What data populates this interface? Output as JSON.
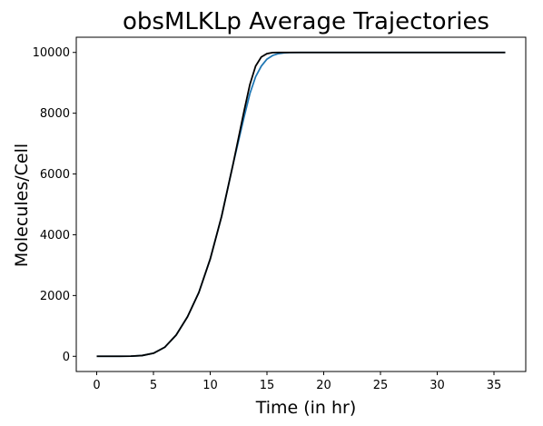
{
  "chart_data": {
    "type": "line",
    "title": "obsMLKLp Average Trajectories",
    "xlabel": "Time (in hr)",
    "ylabel": "Molecules/Cell",
    "xlim": [
      -1.8,
      37.8
    ],
    "ylim": [
      -500,
      10500
    ],
    "xticks": [
      0,
      5,
      10,
      15,
      20,
      25,
      30,
      35
    ],
    "yticks": [
      0,
      2000,
      4000,
      6000,
      8000,
      10000
    ],
    "grid": false,
    "legend": "none",
    "series": [
      {
        "color": "#1f77b4",
        "x": [
          0,
          2,
          3,
          4,
          5,
          6,
          7,
          8,
          9,
          10,
          11,
          12,
          13,
          13.5,
          14,
          14.5,
          15,
          15.5,
          16,
          16.5,
          17,
          18,
          20,
          25,
          30,
          36
        ],
        "y": [
          0,
          0,
          5,
          25,
          100,
          300,
          700,
          1300,
          2100,
          3200,
          4600,
          6300,
          7900,
          8650,
          9200,
          9550,
          9780,
          9900,
          9960,
          9985,
          9995,
          10000,
          10000,
          10000,
          10000,
          10000
        ]
      },
      {
        "color": "#000000",
        "x": [
          0,
          2,
          3,
          4,
          5,
          6,
          7,
          8,
          9,
          10,
          11,
          12,
          13,
          13.5,
          14,
          14.5,
          15,
          15.5,
          16,
          16.5,
          17,
          18,
          20,
          25,
          30,
          36
        ],
        "y": [
          0,
          0,
          5,
          25,
          100,
          300,
          700,
          1300,
          2100,
          3200,
          4600,
          6300,
          8100,
          8950,
          9550,
          9850,
          9960,
          9995,
          10000,
          10000,
          10000,
          10000,
          10000,
          10000,
          10000,
          10000
        ]
      }
    ]
  }
}
